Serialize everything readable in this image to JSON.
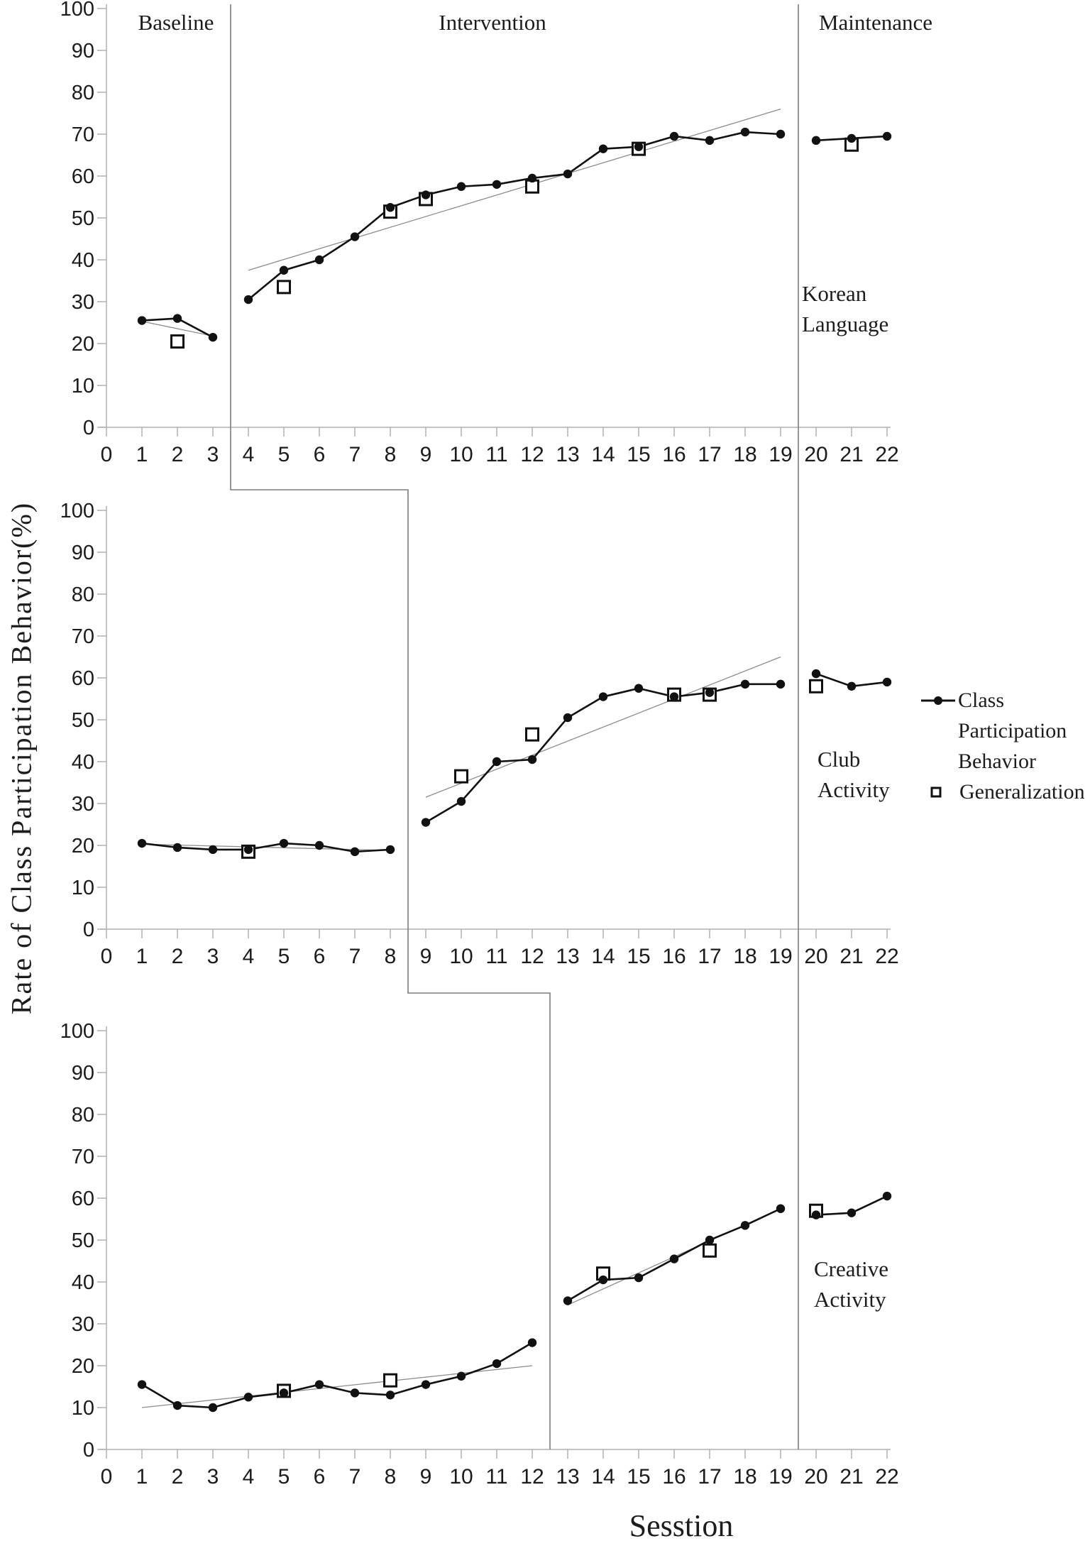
{
  "figure": {
    "y_axis_title": "Rate of Class Participation Behavior(%)",
    "x_axis_title": "Sesstion",
    "phase_labels": [
      "Baseline",
      "Intervention",
      "Maintenance"
    ]
  },
  "legend": {
    "item1_lines": [
      "Class",
      "Participation",
      "Behavior"
    ],
    "item2_label": "Generalization",
    "item1_marker": "line-with-filled-dot",
    "item2_marker": "open-square"
  },
  "chart_data": {
    "type": "line",
    "title": "",
    "xlabel": "Sesstion",
    "ylabel": "Rate of Class Participation Behavior(%)",
    "ylim": [
      0,
      100
    ],
    "grid": false,
    "legend_position": "right-middle",
    "sessions": [
      1,
      2,
      3,
      4,
      5,
      6,
      7,
      8,
      9,
      10,
      11,
      12,
      13,
      14,
      15,
      16,
      17,
      18,
      19,
      20,
      21,
      22
    ],
    "x_ticks": [
      0,
      1,
      2,
      3,
      4,
      5,
      6,
      7,
      8,
      9,
      10,
      11,
      12,
      13,
      14,
      15,
      16,
      17,
      18,
      19,
      20,
      21,
      22
    ],
    "y_ticks": [
      0,
      10,
      20,
      30,
      40,
      50,
      60,
      70,
      80,
      90,
      100
    ],
    "phase_boundary_sessions": [
      3.5,
      8.5,
      12.5
    ],
    "maintenance_boundary_session": 19.5,
    "colors": {
      "data": "#111111",
      "trend": "#8c8c8c",
      "axis": "#b0b0b0",
      "boundary": "#7d7d7d",
      "text": "#1c1c1c"
    },
    "panels": [
      {
        "condition_lines": [
          "Korean",
          "Language"
        ],
        "phases": {
          "baseline": [
            1,
            3
          ],
          "intervention": [
            4,
            19
          ],
          "maintenance": [
            20,
            22
          ]
        },
        "behavior_values": [
          25.5,
          26,
          21.5,
          30.5,
          37.5,
          40,
          45.5,
          52.5,
          55.5,
          57.5,
          58,
          59.5,
          60.5,
          66.5,
          67,
          69.5,
          68.5,
          70.5,
          70,
          68.5,
          69,
          69.5
        ],
        "line_segments": [
          [
            1,
            3
          ],
          [
            4,
            19
          ],
          [
            20,
            22
          ]
        ],
        "generalization_points": [
          [
            2,
            20.5
          ],
          [
            5,
            33.5
          ],
          [
            8,
            51.5
          ],
          [
            9,
            54.5
          ],
          [
            12,
            57.5
          ],
          [
            15,
            66.5
          ],
          [
            21,
            67.5
          ]
        ],
        "trend_lines": [
          [
            1,
            25.3,
            3,
            21.8
          ],
          [
            4,
            37.5,
            19,
            76
          ]
        ]
      },
      {
        "condition_lines": [
          "Club",
          "Activity"
        ],
        "phases": {
          "baseline": [
            1,
            8
          ],
          "intervention": [
            9,
            19
          ],
          "maintenance": [
            20,
            22
          ]
        },
        "behavior_values": [
          20.5,
          19.5,
          19,
          19,
          20.5,
          20,
          18.5,
          19,
          25.5,
          30.5,
          40,
          40.5,
          50.5,
          55.5,
          57.5,
          55.5,
          56.5,
          58.5,
          58.5,
          61,
          58,
          59
        ],
        "line_segments": [
          [
            1,
            8
          ],
          [
            9,
            19
          ],
          [
            20,
            22
          ]
        ],
        "generalization_points": [
          [
            4,
            18.5
          ],
          [
            10,
            36.5
          ],
          [
            12,
            46.5
          ],
          [
            16,
            56
          ],
          [
            17,
            56
          ],
          [
            20,
            58
          ]
        ],
        "trend_lines": [
          [
            1,
            20.3,
            8,
            18.8
          ],
          [
            9,
            31.5,
            19,
            65
          ]
        ]
      },
      {
        "condition_lines": [
          "Creative",
          "Activity"
        ],
        "phases": {
          "baseline": [
            1,
            12
          ],
          "intervention": [
            13,
            19
          ],
          "maintenance": [
            20,
            22
          ]
        },
        "behavior_values": [
          15.5,
          10.5,
          10,
          12.5,
          13.5,
          15.5,
          13.5,
          13,
          15.5,
          17.5,
          20.5,
          25.5,
          35.5,
          40.5,
          41,
          45.5,
          50,
          53.5,
          57.5,
          56,
          56.5,
          60.5
        ],
        "line_segments": [
          [
            1,
            12
          ],
          [
            13,
            19
          ],
          [
            20,
            22
          ]
        ],
        "generalization_points": [
          [
            5,
            14
          ],
          [
            8,
            16.5
          ],
          [
            14,
            42
          ],
          [
            17,
            47.5
          ],
          [
            20,
            57
          ]
        ],
        "trend_lines": [
          [
            1,
            10,
            12,
            20
          ],
          [
            13,
            34.5,
            19,
            57.5
          ]
        ]
      }
    ]
  }
}
